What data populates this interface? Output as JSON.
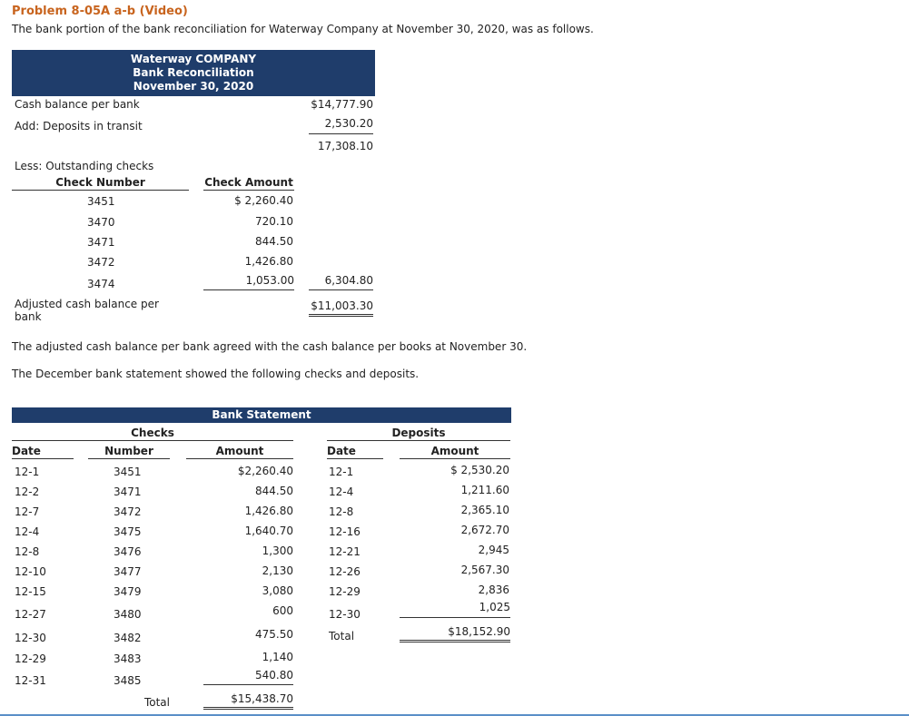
{
  "problem_title": "Problem 8-05A a-b (Video)",
  "intro_text": "The bank portion of the bank reconciliation for Waterway Company at November 30, 2020, was as follows.",
  "reconciliation": {
    "header": [
      "Waterway COMPANY",
      "Bank Reconciliation",
      "November 30, 2020"
    ],
    "cash_balance_label": "Cash balance per bank",
    "cash_balance_value": "$14,777.90",
    "deposits_label": "Add: Deposits in transit",
    "deposits_value": "2,530.20",
    "subtotal_value": "17,308.10",
    "less_label": "Less: Outstanding checks",
    "col_check_number": "Check Number",
    "col_check_amount": "Check Amount",
    "checks": [
      {
        "number": "3451",
        "amount": "$ 2,260.40"
      },
      {
        "number": "3470",
        "amount": "720.10"
      },
      {
        "number": "3471",
        "amount": "844.50"
      },
      {
        "number": "3472",
        "amount": "1,426.80"
      },
      {
        "number": "3474",
        "amount": "1,053.00"
      }
    ],
    "outstanding_total": "6,304.80",
    "adjusted_label_1": "Adjusted cash balance per",
    "adjusted_label_2": "bank",
    "adjusted_value": "$11,003.30"
  },
  "note_1": "The adjusted cash balance per bank agreed with the cash balance per books at November 30.",
  "note_2": "The December bank statement showed the following checks and deposits.",
  "statement": {
    "header": "Bank Statement",
    "checks_group": "Checks",
    "deposits_group": "Deposits",
    "col_date": "Date",
    "col_number": "Number",
    "col_amount": "Amount",
    "col_dep_date": "Date",
    "col_dep_amount": "Amount",
    "checks": [
      {
        "date": "12-1",
        "number": "3451",
        "amount": "$2,260.40"
      },
      {
        "date": "12-2",
        "number": "3471",
        "amount": "844.50"
      },
      {
        "date": "12-7",
        "number": "3472",
        "amount": "1,426.80"
      },
      {
        "date": "12-4",
        "number": "3475",
        "amount": "1,640.70"
      },
      {
        "date": "12-8",
        "number": "3476",
        "amount": "1,300"
      },
      {
        "date": "12-10",
        "number": "3477",
        "amount": "2,130"
      },
      {
        "date": "12-15",
        "number": "3479",
        "amount": "3,080"
      },
      {
        "date": "12-27",
        "number": "3480",
        "amount": "600"
      },
      {
        "date": "12-30",
        "number": "3482",
        "amount": "475.50"
      },
      {
        "date": "12-29",
        "number": "3483",
        "amount": "1,140"
      },
      {
        "date": "12-31",
        "number": "3485",
        "amount": "540.80"
      }
    ],
    "checks_total_label": "Total",
    "checks_total": "$15,438.70",
    "deposits": [
      {
        "date": "12-1",
        "amount": "$ 2,530.20"
      },
      {
        "date": "12-4",
        "amount": "1,211.60"
      },
      {
        "date": "12-8",
        "amount": "2,365.10"
      },
      {
        "date": "12-16",
        "amount": "2,672.70"
      },
      {
        "date": "12-21",
        "amount": "2,945"
      },
      {
        "date": "12-26",
        "amount": "2,567.30"
      },
      {
        "date": "12-29",
        "amount": "2,836"
      },
      {
        "date": "12-30",
        "amount": "1,025"
      }
    ],
    "deposits_total_label": "Total",
    "deposits_total": "$18,152.90"
  }
}
